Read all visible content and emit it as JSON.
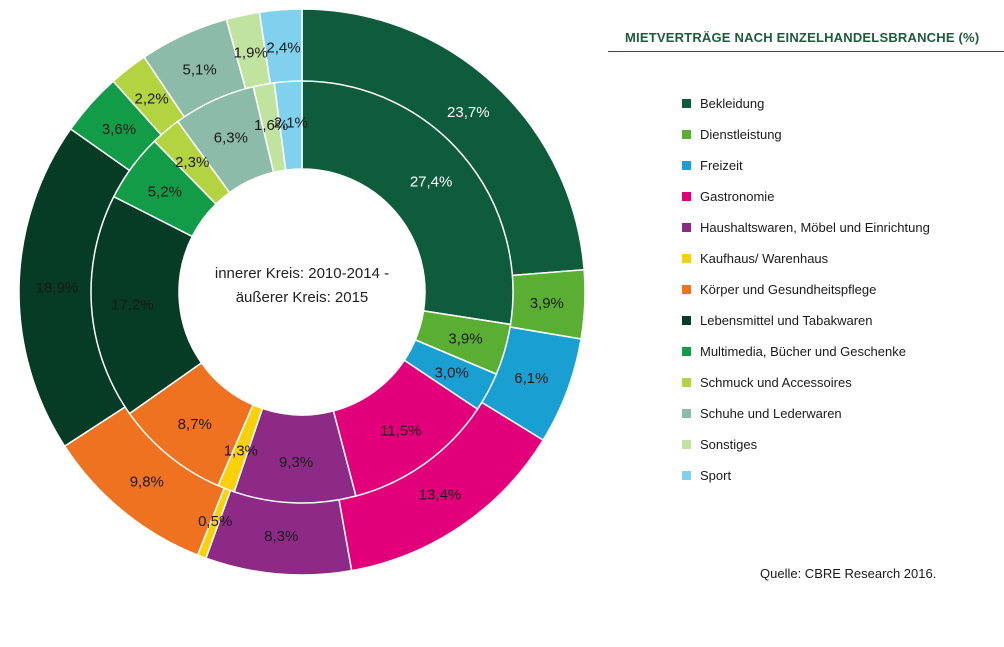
{
  "chart_data": {
    "type": "pie",
    "title": "MIETVERTRÄGE NACH EINZELHANDELSBRANCHE (%)",
    "center_text": [
      "innerer Kreis: 2010-2014 -",
      "äußerer Kreis: 2015"
    ],
    "categories": [
      "Bekleidung",
      "Dienstleistung",
      "Freizeit",
      "Gastronomie",
      "Haushaltswaren, Möbel und Einrichtung",
      "Kaufhaus/ Warenhaus",
      "Körper und Gesundheitspflege",
      "Lebensmittel und Tabakwaren",
      "Multimedia, Bücher und Geschenke",
      "Schmuck und Accessoires",
      "Schuhe und Lederwaren",
      "Sonstiges",
      "Sport"
    ],
    "colors": [
      "#0f5c3c",
      "#5aae32",
      "#1a9fd3",
      "#e2007a",
      "#8c2a86",
      "#f9d10a",
      "#ee7220",
      "#063b25",
      "#139c48",
      "#b3d341",
      "#8cbba9",
      "#c1e3a0",
      "#7fd1ee"
    ],
    "series": [
      {
        "ring": "outer",
        "values": [
          23.7,
          3.9,
          6.1,
          13.4,
          8.3,
          0.5,
          9.8,
          18.9,
          3.6,
          2.2,
          5.1,
          1.9,
          2.4
        ],
        "labels": [
          "23,7%",
          "3,9%",
          "6,1%",
          "13,4%",
          "8,3%",
          "0,5%",
          "9,8%",
          "18,9%",
          "3,6%",
          "2,2%",
          "5,1%",
          "1,9%",
          "2,4%"
        ]
      },
      {
        "ring": "inner",
        "values": [
          27.4,
          3.9,
          3.0,
          11.5,
          9.3,
          1.3,
          8.7,
          17.2,
          5.2,
          2.3,
          6.3,
          1.6,
          2.1
        ],
        "labels": [
          "27,4%",
          "3,9%",
          "3,0%",
          "11,5%",
          "9,3%",
          "1,3%",
          "8,7%",
          "17,2%",
          "5,2%",
          "2,3%",
          "6,3%",
          "1,6%",
          "2,1%"
        ]
      }
    ]
  },
  "source": "Quelle: CBRE Research 2016."
}
